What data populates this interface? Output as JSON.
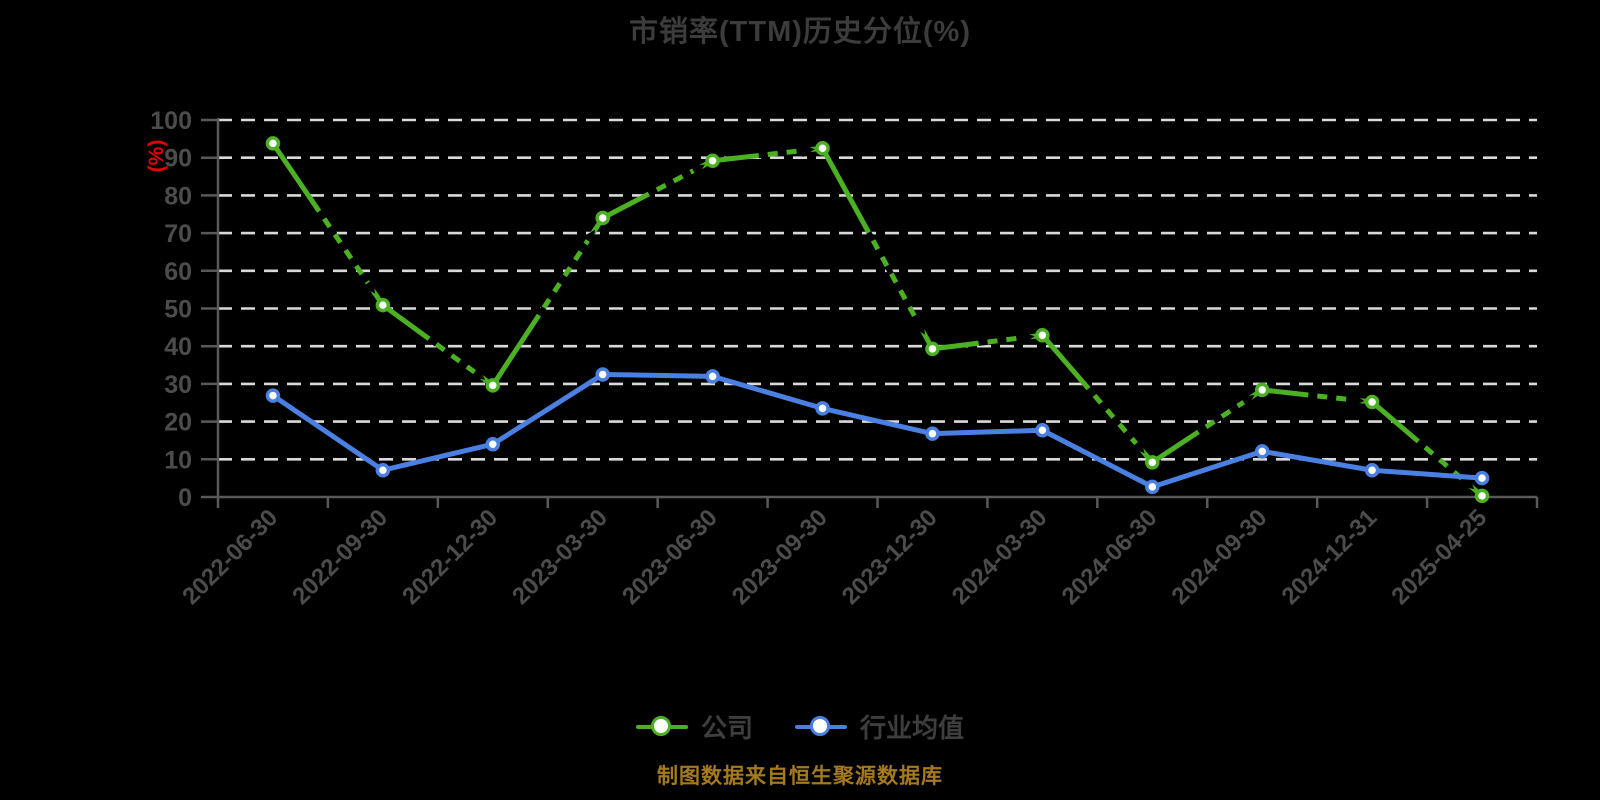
{
  "chart_data": {
    "type": "line",
    "title": "市销率(TTM)历史分位(%)",
    "ylabel": "(%)",
    "xlabel": "",
    "categories": [
      "2022-06-30",
      "2022-09-30",
      "2022-12-30",
      "2023-03-30",
      "2023-06-30",
      "2023-09-30",
      "2023-12-30",
      "2024-03-30",
      "2024-06-30",
      "2024-09-30",
      "2024-12-31",
      "2025-04-25"
    ],
    "series": [
      {
        "name": "公司",
        "color": "#4cb122",
        "marker": "circle-white-fill",
        "values": [
          93.8,
          50.9,
          29.6,
          74.0,
          89.2,
          92.5,
          39.3,
          42.9,
          9.2,
          28.4,
          25.2,
          0.3
        ]
      },
      {
        "name": "行业均值",
        "color": "#4a80e1",
        "marker": "circle-white-fill",
        "values": [
          26.9,
          7.1,
          14.0,
          32.5,
          32.0,
          23.5,
          16.8,
          17.7,
          2.7,
          12.1,
          7.1,
          5.0
        ]
      }
    ],
    "ylim": [
      0,
      100
    ],
    "ytick_interval": 10,
    "grid": "horizontal-dashed",
    "legend_position": "bottom-center",
    "annotations": "black dashed direction arrows overlaid on company line segments",
    "source_note": "制图数据来自恒生聚源数据库"
  },
  "style": {
    "background": "#000000",
    "title_color": "#3c3c3c",
    "axis_text_color": "#4c4c4c",
    "axis_line_color": "#595959",
    "grid_color": "#d9d9d9",
    "ylabel_color": "#e60000",
    "legend_text_color": "#3e3e3e",
    "source_text_color": "#a5791e",
    "marker_fill": "#ffffff",
    "trend_arrow_color": "#000000"
  }
}
